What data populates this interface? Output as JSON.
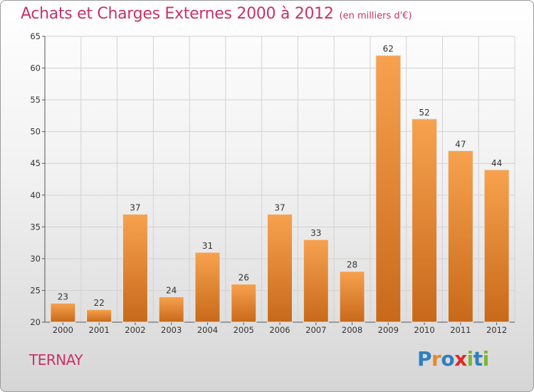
{
  "header": {
    "title": "Achats et Charges Externes 2000 à 2012",
    "unit": "(en milliers d'€)"
  },
  "town": "TERNAY",
  "logo": {
    "letters": [
      {
        "ch": "P",
        "color": "#2f7fc0"
      },
      {
        "ch": "r",
        "color": "#e8862a"
      },
      {
        "ch": "o",
        "color": "#2f7fc0"
      },
      {
        "ch": "x",
        "color": "#e02828"
      },
      {
        "ch": "i",
        "color": "#7ab82f"
      },
      {
        "ch": "t",
        "color": "#2f7fc0"
      },
      {
        "ch": "i",
        "color": "#7ab82f"
      }
    ]
  },
  "colors": {
    "bar_top": "#f7a24f",
    "bar_bottom": "#c8691a",
    "title": "#c8316a"
  },
  "chart_data": {
    "type": "bar",
    "title": "Achats et Charges Externes 2000 à 2012",
    "categories": [
      "2000",
      "2001",
      "2002",
      "2003",
      "2004",
      "2005",
      "2006",
      "2007",
      "2008",
      "2009",
      "2010",
      "2011",
      "2012"
    ],
    "values": [
      23,
      22,
      37,
      24,
      31,
      26,
      37,
      33,
      28,
      62,
      52,
      47,
      44
    ],
    "ylim": [
      20,
      65
    ],
    "yticks": [
      20,
      25,
      30,
      35,
      40,
      45,
      50,
      55,
      60,
      65
    ],
    "grid": true
  }
}
